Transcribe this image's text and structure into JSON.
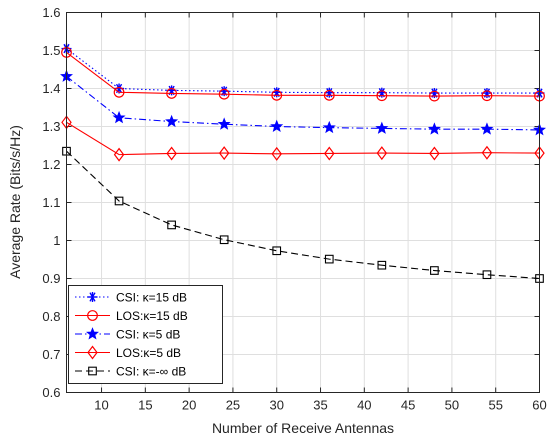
{
  "chart_data": {
    "type": "line",
    "xlabel": "Number of Receive Antennas",
    "ylabel": "Average Rate (Bits/s/Hz)",
    "xlim": [
      6,
      60
    ],
    "ylim": [
      0.6,
      1.6
    ],
    "xticks": [
      10,
      15,
      20,
      25,
      30,
      35,
      40,
      45,
      50,
      55,
      60
    ],
    "yticks": [
      0.6,
      0.7,
      0.8,
      0.9,
      1,
      1.1,
      1.2,
      1.3,
      1.4,
      1.5,
      1.6
    ],
    "grid": true,
    "legend_position": "bottom-left",
    "x": [
      6,
      12,
      18,
      24,
      30,
      36,
      42,
      48,
      54,
      60
    ],
    "series": [
      {
        "name": "CSI: κ=15 dB",
        "values": [
          1.505,
          1.4,
          1.395,
          1.393,
          1.39,
          1.389,
          1.389,
          1.388,
          1.388,
          1.388
        ],
        "color": "#0000ff",
        "dash": "dotted",
        "marker": "asterisk"
      },
      {
        "name": "LOS:κ=15 dB",
        "values": [
          1.495,
          1.39,
          1.387,
          1.385,
          1.382,
          1.382,
          1.381,
          1.38,
          1.381,
          1.38
        ],
        "color": "#ff0000",
        "dash": "solid",
        "marker": "circle"
      },
      {
        "name": "CSI: κ=5 dB",
        "values": [
          1.432,
          1.323,
          1.313,
          1.306,
          1.3,
          1.297,
          1.295,
          1.293,
          1.293,
          1.291
        ],
        "color": "#0000ff",
        "dash": "dashdot",
        "marker": "star"
      },
      {
        "name": "LOS:κ=5 dB",
        "values": [
          1.311,
          1.226,
          1.229,
          1.23,
          1.228,
          1.229,
          1.23,
          1.229,
          1.231,
          1.23
        ],
        "color": "#ff0000",
        "dash": "solid",
        "marker": "diamond"
      },
      {
        "name": "CSI: κ=-∞ dB",
        "values": [
          1.235,
          1.104,
          1.041,
          1.002,
          0.973,
          0.951,
          0.935,
          0.921,
          0.91,
          0.9
        ],
        "color": "#000000",
        "dash": "dashed",
        "marker": "square"
      }
    ]
  }
}
